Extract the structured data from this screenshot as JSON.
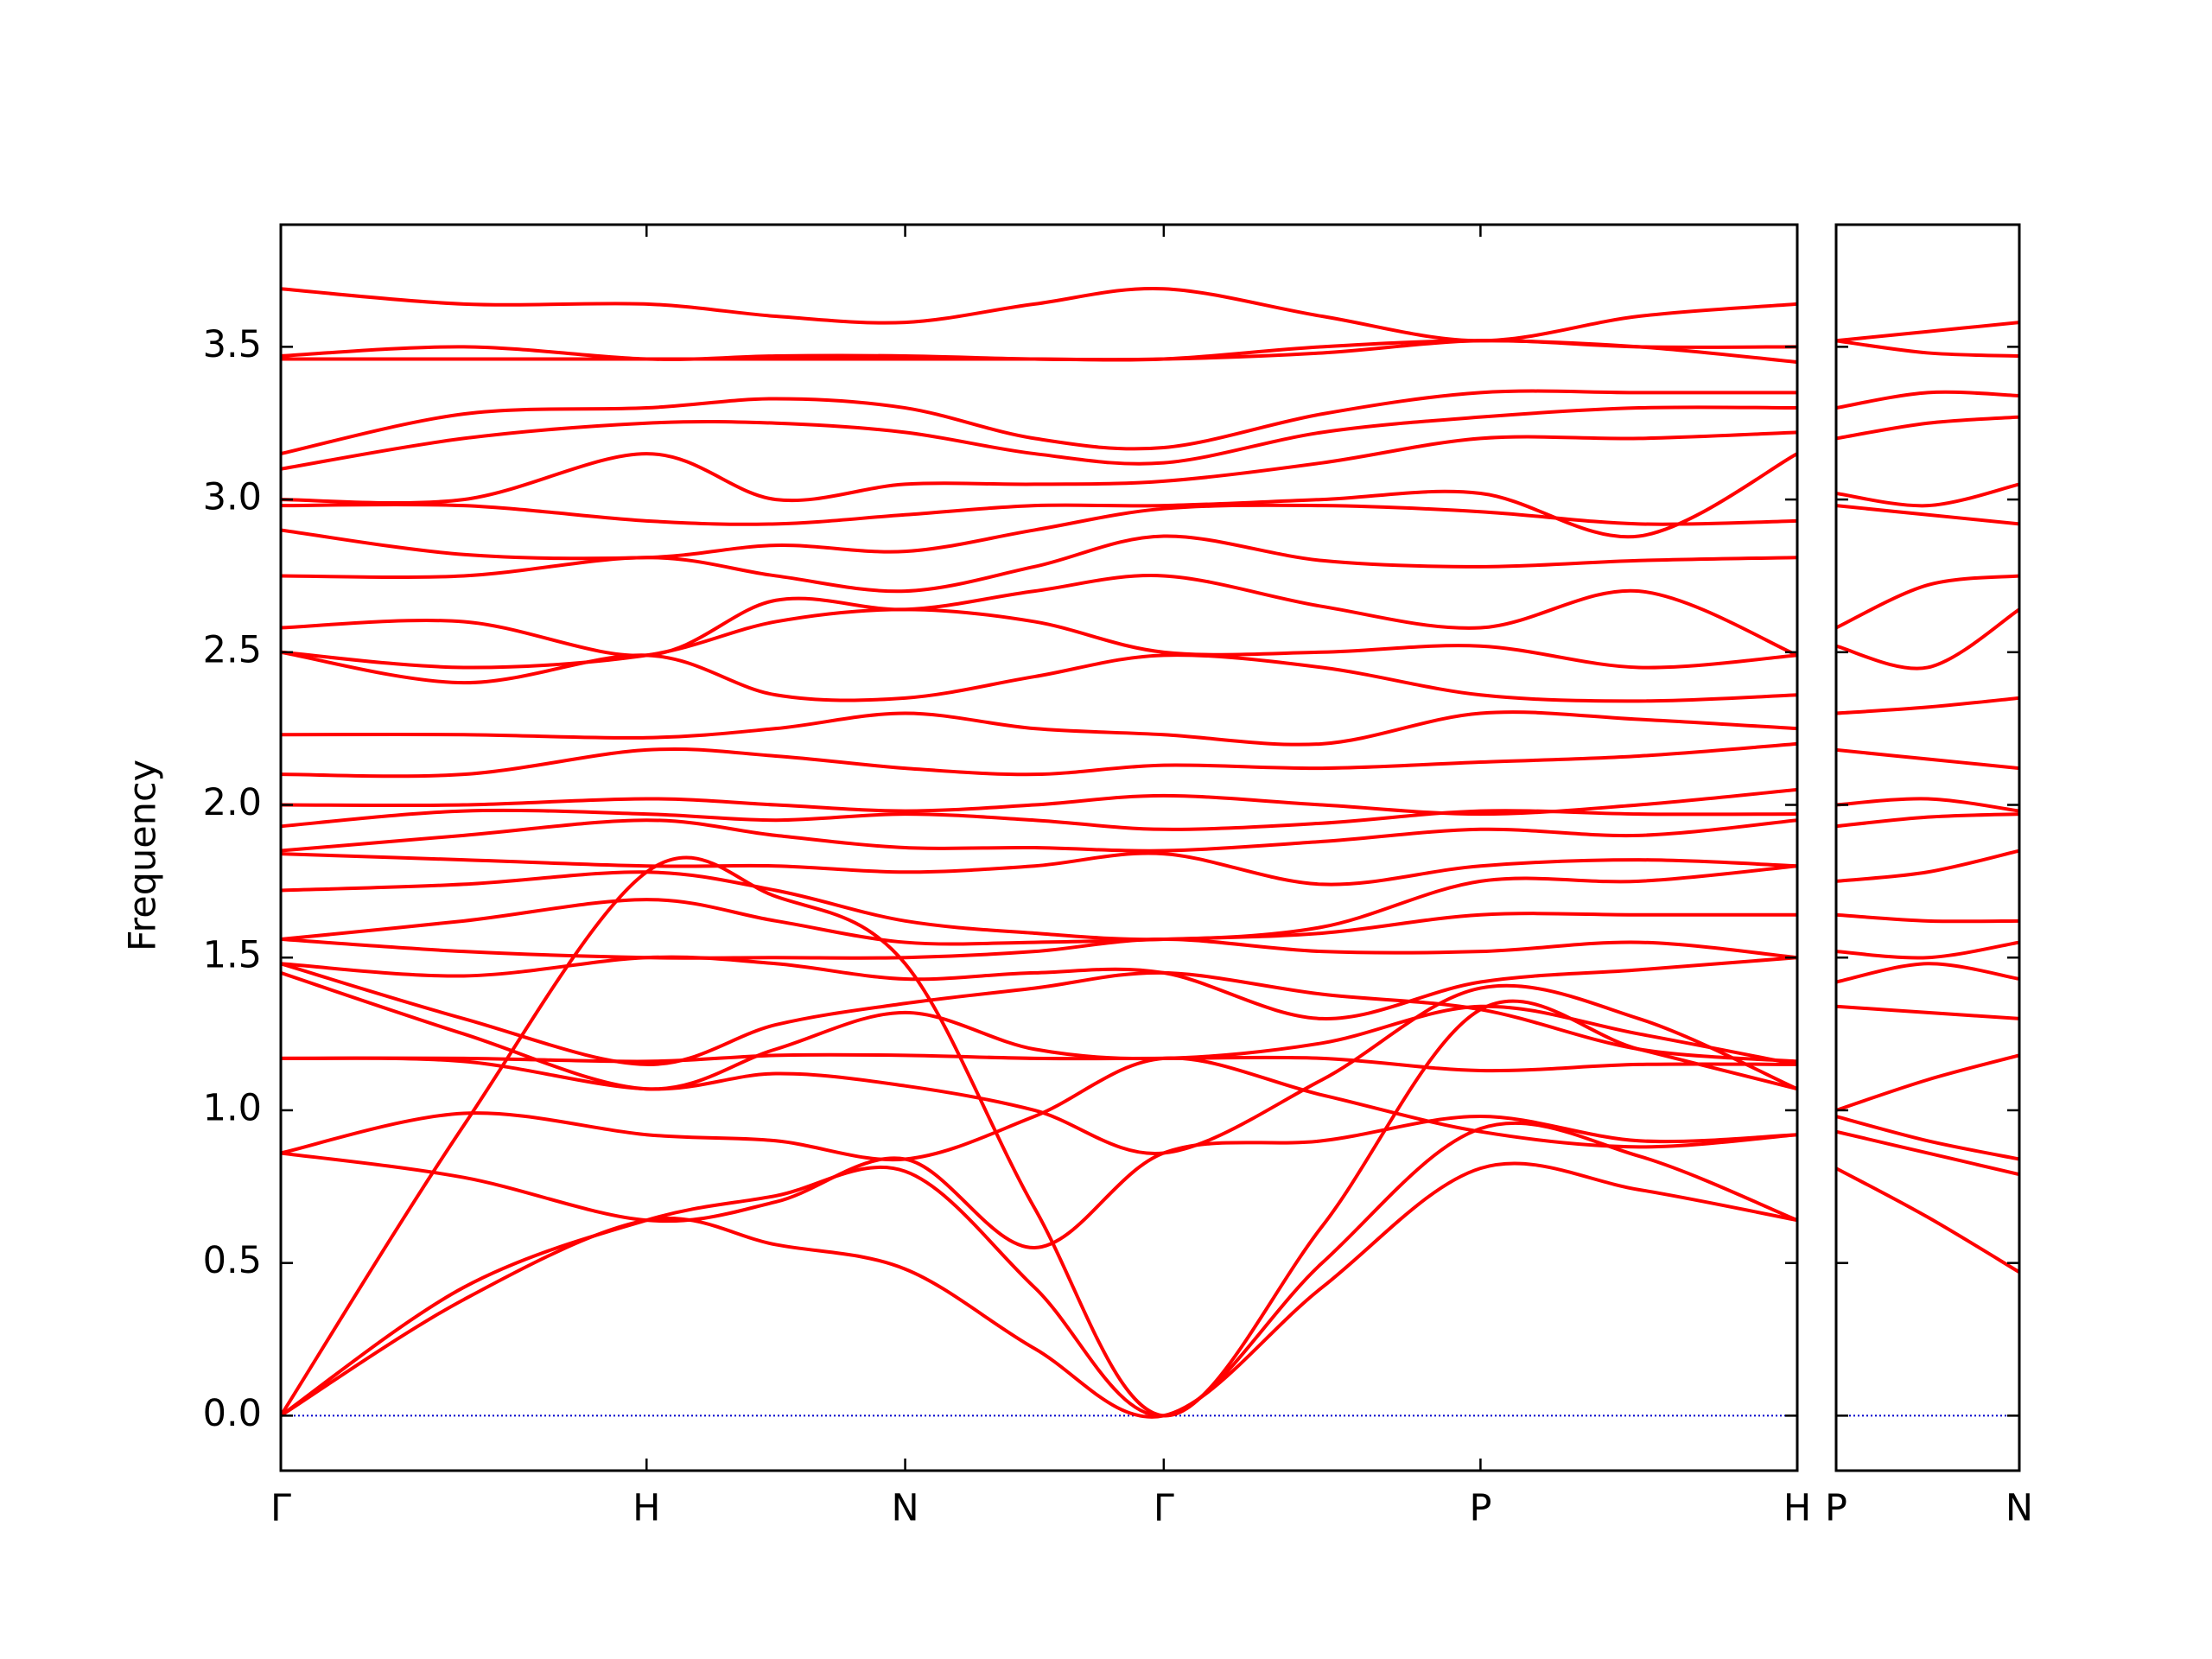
{
  "chart_data": [
    {
      "type": "line",
      "ylabel": "Frequency",
      "color": "#ff0000",
      "hline": {
        "value": 0,
        "color": "#0000cc"
      },
      "xlim": [
        0,
        4.1463
      ],
      "xticks": [
        {
          "value": 0,
          "label": "Γ"
        },
        {
          "value": 1,
          "label": "H"
        },
        {
          "value": 1.7071,
          "label": "N"
        },
        {
          "value": 2.4142,
          "label": "Γ"
        },
        {
          "value": 3.2802,
          "label": "P"
        },
        {
          "value": 4.1463,
          "label": "H"
        }
      ],
      "ylim": [
        -0.18,
        3.9
      ],
      "yticks": [
        {
          "value": 0,
          "label": "0.0"
        },
        0.5,
        {
          "value": 1,
          "label": "1.0"
        },
        1.5,
        {
          "value": 2,
          "label": "2.0"
        },
        2.5,
        {
          "value": 3,
          "label": "3.0"
        },
        3.5
      ],
      "x": [
        0,
        0.5,
        1,
        1.3536,
        1.7071,
        2.0607,
        2.4142,
        2.8472,
        3.2802,
        3.7133,
        4.1463
      ],
      "series": [
        {
          "values": [
            0,
            0.38,
            0.64,
            0.56,
            0.48,
            0.22,
            0,
            0.42,
            0.81,
            0.74,
            0.64
          ]
        },
        {
          "values": [
            0,
            0.42,
            0.64,
            0.72,
            0.8,
            0.42,
            0,
            0.5,
            0.94,
            0.85,
            0.64
          ]
        },
        {
          "values": [
            0,
            0.95,
            1.78,
            1.7,
            1.48,
            0.68,
            0,
            0.62,
            1.33,
            1.2,
            1.07
          ]
        },
        {
          "values": [
            0.86,
            0.78,
            0.64,
            0.7,
            0.84,
            0.55,
            0.86,
            0.9,
            0.98,
            0.9,
            0.92
          ]
        },
        {
          "values": [
            0.86,
            0.99,
            0.92,
            0.9,
            0.84,
            0.98,
            1.17,
            1.05,
            0.93,
            0.88,
            0.92
          ]
        },
        {
          "values": [
            1.17,
            1.16,
            1.07,
            1.12,
            1.08,
            1.0,
            0.86,
            1.1,
            1.4,
            1.3,
            1.07
          ]
        },
        {
          "values": [
            1.17,
            1.17,
            1.16,
            1.18,
            1.18,
            1.17,
            1.17,
            1.17,
            1.13,
            1.15,
            1.15
          ]
        },
        {
          "values": [
            1.45,
            1.25,
            1.07,
            1.2,
            1.32,
            1.2,
            1.17,
            1.22,
            1.34,
            1.25,
            1.15
          ]
        },
        {
          "values": [
            1.48,
            1.3,
            1.15,
            1.28,
            1.35,
            1.4,
            1.45,
            1.38,
            1.33,
            1.2,
            1.16
          ]
        },
        {
          "values": [
            1.48,
            1.44,
            1.5,
            1.48,
            1.43,
            1.45,
            1.45,
            1.3,
            1.42,
            1.46,
            1.5
          ]
        },
        {
          "values": [
            1.56,
            1.52,
            1.5,
            1.5,
            1.5,
            1.52,
            1.56,
            1.52,
            1.52,
            1.55,
            1.5
          ]
        },
        {
          "values": [
            1.56,
            1.62,
            1.69,
            1.62,
            1.55,
            1.55,
            1.56,
            1.58,
            1.64,
            1.64,
            1.64
          ]
        },
        {
          "values": [
            1.72,
            1.74,
            1.78,
            1.72,
            1.62,
            1.58,
            1.56,
            1.6,
            1.75,
            1.75,
            1.8
          ]
        },
        {
          "values": [
            1.84,
            1.82,
            1.8,
            1.8,
            1.78,
            1.8,
            1.84,
            1.74,
            1.8,
            1.82,
            1.8
          ]
        },
        {
          "values": [
            1.85,
            1.9,
            1.95,
            1.9,
            1.86,
            1.86,
            1.85,
            1.88,
            1.92,
            1.9,
            1.95
          ]
        },
        {
          "values": [
            1.93,
            1.98,
            1.97,
            1.95,
            1.97,
            1.95,
            1.92,
            1.94,
            1.98,
            1.97,
            1.97
          ]
        },
        {
          "values": [
            2.0,
            2.0,
            2.02,
            2.0,
            1.98,
            2.0,
            2.03,
            2.0,
            1.97,
            2.0,
            2.05
          ]
        },
        {
          "values": [
            2.1,
            2.1,
            2.18,
            2.16,
            2.12,
            2.1,
            2.13,
            2.12,
            2.14,
            2.16,
            2.2
          ]
        },
        {
          "values": [
            2.23,
            2.23,
            2.22,
            2.25,
            2.3,
            2.25,
            2.23,
            2.2,
            2.3,
            2.28,
            2.25
          ]
        },
        {
          "values": [
            2.5,
            2.4,
            2.49,
            2.36,
            2.35,
            2.42,
            2.49,
            2.45,
            2.36,
            2.34,
            2.36
          ]
        },
        {
          "values": [
            2.5,
            2.45,
            2.49,
            2.6,
            2.64,
            2.6,
            2.5,
            2.5,
            2.52,
            2.45,
            2.49
          ]
        },
        {
          "values": [
            2.58,
            2.6,
            2.49,
            2.67,
            2.64,
            2.7,
            2.75,
            2.65,
            2.58,
            2.7,
            2.49
          ]
        },
        {
          "values": [
            2.75,
            2.75,
            2.81,
            2.75,
            2.7,
            2.78,
            2.88,
            2.8,
            2.78,
            2.8,
            2.81
          ]
        },
        {
          "values": [
            2.9,
            2.82,
            2.81,
            2.85,
            2.83,
            2.9,
            2.97,
            2.98,
            2.96,
            2.92,
            2.93
          ]
        },
        {
          "values": [
            2.98,
            2.98,
            2.93,
            2.92,
            2.95,
            2.98,
            2.98,
            3.0,
            3.02,
            2.88,
            3.15
          ]
        },
        {
          "values": [
            3.0,
            3.0,
            3.15,
            3.0,
            3.05,
            3.05,
            3.06,
            3.12,
            3.2,
            3.2,
            3.22
          ]
        },
        {
          "values": [
            3.1,
            3.2,
            3.25,
            3.25,
            3.22,
            3.15,
            3.12,
            3.22,
            3.27,
            3.3,
            3.3
          ]
        },
        {
          "values": [
            3.15,
            3.28,
            3.3,
            3.33,
            3.3,
            3.2,
            3.17,
            3.28,
            3.35,
            3.35,
            3.35
          ]
        },
        {
          "values": [
            3.47,
            3.5,
            3.46,
            3.47,
            3.47,
            3.46,
            3.46,
            3.48,
            3.52,
            3.5,
            3.5
          ]
        },
        {
          "values": [
            3.46,
            3.46,
            3.46,
            3.46,
            3.46,
            3.46,
            3.46,
            3.5,
            3.52,
            3.5,
            3.45
          ]
        },
        {
          "values": [
            3.69,
            3.64,
            3.64,
            3.6,
            3.58,
            3.64,
            3.69,
            3.6,
            3.52,
            3.6,
            3.64
          ]
        }
      ]
    },
    {
      "type": "line",
      "color": "#ff0000",
      "hline": {
        "value": 0,
        "color": "#0000cc"
      },
      "xlim": [
        0,
        0.5
      ],
      "xticks": [
        {
          "value": 0,
          "label": "P"
        },
        {
          "value": 0.5,
          "label": "N"
        }
      ],
      "ylim": [
        -0.18,
        3.9
      ],
      "x": [
        0,
        0.25,
        0.5
      ],
      "series": [
        {
          "values": [
            0.81,
            0.65,
            0.47
          ]
        },
        {
          "values": [
            0.93,
            0.86,
            0.79
          ]
        },
        {
          "values": [
            0.98,
            0.9,
            0.84
          ]
        },
        {
          "values": [
            1.0,
            1.1,
            1.18
          ]
        },
        {
          "values": [
            1.34,
            1.32,
            1.3
          ]
        },
        {
          "values": [
            1.42,
            1.48,
            1.43
          ]
        },
        {
          "values": [
            1.52,
            1.5,
            1.55
          ]
        },
        {
          "values": [
            1.64,
            1.62,
            1.62
          ]
        },
        {
          "values": [
            1.75,
            1.78,
            1.85
          ]
        },
        {
          "values": [
            1.93,
            1.96,
            1.97
          ]
        },
        {
          "values": [
            2.0,
            2.02,
            1.98
          ]
        },
        {
          "values": [
            2.18,
            2.15,
            2.12
          ]
        },
        {
          "values": [
            2.3,
            2.32,
            2.35
          ]
        },
        {
          "values": [
            2.52,
            2.45,
            2.64
          ]
        },
        {
          "values": [
            2.58,
            2.72,
            2.75
          ]
        },
        {
          "values": [
            2.98,
            2.95,
            2.92
          ]
        },
        {
          "values": [
            3.02,
            2.98,
            3.05
          ]
        },
        {
          "values": [
            3.2,
            3.25,
            3.27
          ]
        },
        {
          "values": [
            3.3,
            3.35,
            3.34
          ]
        },
        {
          "values": [
            3.52,
            3.55,
            3.58
          ]
        },
        {
          "values": [
            3.52,
            3.48,
            3.47
          ]
        }
      ]
    }
  ]
}
